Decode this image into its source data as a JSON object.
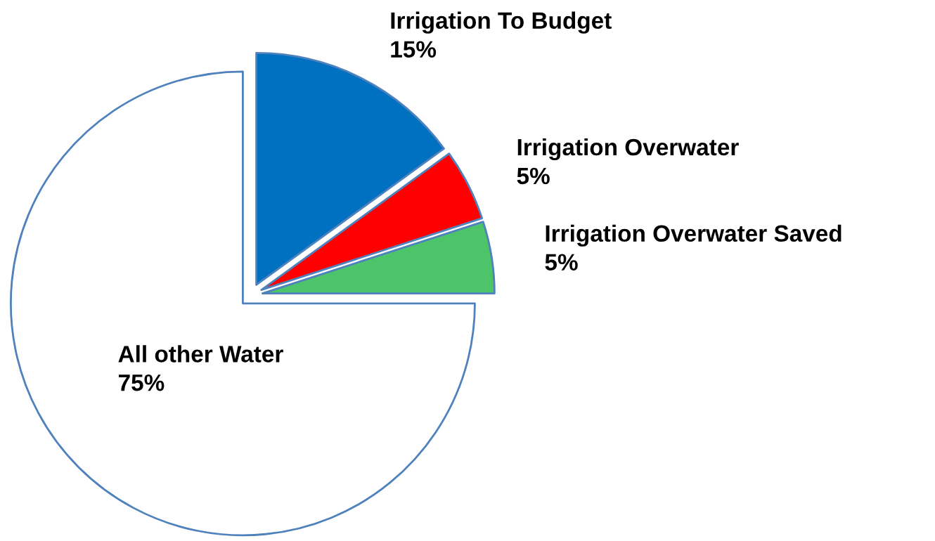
{
  "chart_data": {
    "type": "pie",
    "categories": [
      "Irrigation To Budget",
      "Irrigation Overwater",
      "Irrigation Overwater Saved",
      "All other Water"
    ],
    "values": [
      15,
      5,
      5,
      75
    ],
    "colors": [
      "#0070c0",
      "#ff0000",
      "#4ec46a",
      "#ffffff"
    ],
    "value_labels": [
      "15%",
      "5%",
      "5%",
      "75%"
    ]
  }
}
